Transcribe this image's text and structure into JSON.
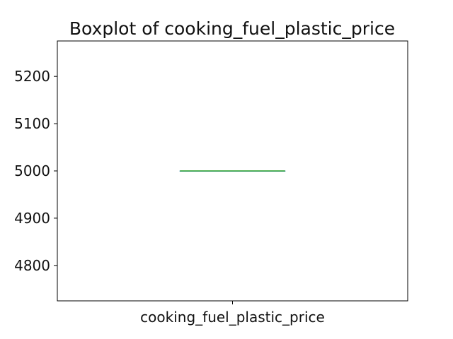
{
  "chart_data": {
    "type": "box",
    "title": "Boxplot of cooking_fuel_plastic_price",
    "xlabel": "",
    "ylabel": "",
    "categories": [
      "cooking_fuel_plastic_price"
    ],
    "ylim": [
      4725,
      5275
    ],
    "yticks": [
      4800,
      4900,
      5000,
      5100,
      5200
    ],
    "ytick_labels": [
      "4800",
      "4900",
      "5000",
      "5100",
      "5200"
    ],
    "boxes": [
      {
        "category": "cooking_fuel_plastic_price",
        "min": 5000,
        "q1": 5000,
        "median": 5000,
        "q3": 5000,
        "max": 5000,
        "outliers": []
      }
    ],
    "grid": false,
    "box_color": "#1f77b4",
    "median_color": "#2ca02c",
    "whisker_color": "#000000"
  }
}
